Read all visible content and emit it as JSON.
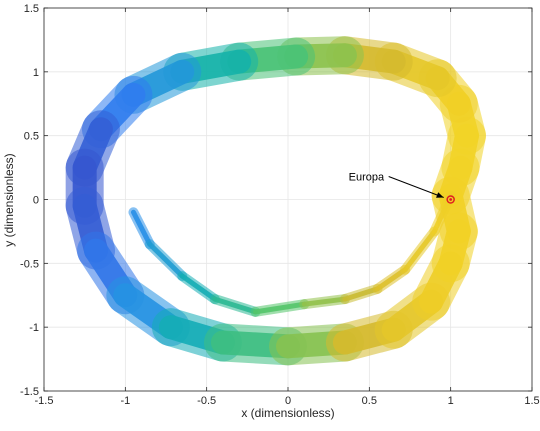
{
  "chart_data": {
    "type": "scatter",
    "title": "",
    "xlabel": "x (dimensionless)",
    "ylabel": "y (dimensionless)",
    "xlim": [
      -1.5,
      1.5
    ],
    "ylim": [
      -1.5,
      1.5
    ],
    "xticks": [
      -1.5,
      -1,
      -0.5,
      0,
      0.5,
      1,
      1.5
    ],
    "yticks": [
      -1.5,
      -1,
      -0.5,
      0,
      0.5,
      1,
      1.5
    ],
    "xtick_labels": [
      "-1.5",
      "-1",
      "-0.5",
      "0",
      "0.5",
      "1",
      "1.5"
    ],
    "ytick_labels": [
      "-1.5",
      "-1",
      "-0.5",
      "0",
      "0.5",
      "1",
      "1.5"
    ],
    "grid": true,
    "colormap": "parula",
    "series": [
      {
        "name": "",
        "kind": "trajectory-band",
        "centerline": [
          [
            1.0,
            0.03
          ],
          [
            1.06,
            0.25
          ],
          [
            1.1,
            0.5
          ],
          [
            1.05,
            0.75
          ],
          [
            0.92,
            0.95
          ],
          [
            0.65,
            1.08
          ],
          [
            0.35,
            1.13
          ],
          [
            0.05,
            1.12
          ],
          [
            -0.3,
            1.08
          ],
          [
            -0.65,
            1.0
          ],
          [
            -0.95,
            0.82
          ],
          [
            -1.15,
            0.55
          ],
          [
            -1.25,
            0.25
          ],
          [
            -1.25,
            -0.05
          ],
          [
            -1.18,
            -0.4
          ],
          [
            -1.0,
            -0.75
          ],
          [
            -0.72,
            -1.0
          ],
          [
            -0.4,
            -1.12
          ],
          [
            0.0,
            -1.15
          ],
          [
            0.35,
            -1.12
          ],
          [
            0.65,
            -1.02
          ],
          [
            0.88,
            -0.8
          ],
          [
            1.0,
            -0.5
          ],
          [
            1.05,
            -0.25
          ],
          [
            1.0,
            0.03
          ]
        ],
        "inner_branch": [
          [
            -0.95,
            -0.1
          ],
          [
            -0.85,
            -0.35
          ],
          [
            -0.65,
            -0.6
          ],
          [
            -0.45,
            -0.78
          ],
          [
            -0.2,
            -0.88
          ],
          [
            0.1,
            -0.82
          ],
          [
            0.35,
            -0.78
          ],
          [
            0.55,
            -0.7
          ],
          [
            0.72,
            -0.55
          ],
          [
            0.9,
            -0.25
          ],
          [
            1.0,
            0.03
          ]
        ],
        "colors": [
          "#3e26a8",
          "#2e87f7",
          "#12b2ae",
          "#5cc864",
          "#d6bb2e",
          "#f2d126",
          "#f5e52a"
        ]
      }
    ],
    "annotations": [
      {
        "text": "Europa",
        "x": 1.0,
        "y": 0.0,
        "marker": "circle",
        "color": "#e02020",
        "arrow": true
      }
    ]
  }
}
